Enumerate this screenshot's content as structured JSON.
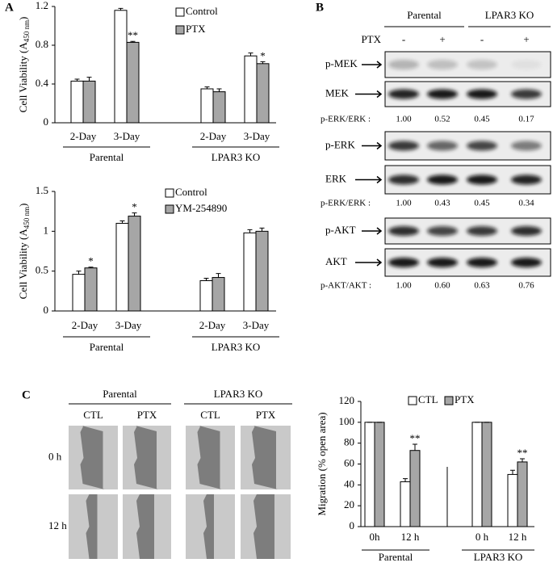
{
  "panel_labels": [
    "A",
    "B",
    "C"
  ],
  "chart_data": [
    {
      "type": "bar",
      "y_label": {
        "text": "Cell Viability (A",
        "sub": "450 nm",
        "end": ")"
      },
      "categories": [
        "2-Day",
        "3-Day",
        "2-Day",
        "3-Day"
      ],
      "groups": [
        "Parental",
        "LPAR3 KO"
      ],
      "series": [
        {
          "name": "Control",
          "color": "#ffffff",
          "values": [
            0.43,
            1.16,
            0.35,
            0.69
          ],
          "errors": [
            0.02,
            0.02,
            0.02,
            0.03
          ],
          "significance": [
            null,
            null,
            null,
            null
          ]
        },
        {
          "name": "PTX",
          "color": "#a6a6a6",
          "values": [
            0.43,
            0.83,
            0.32,
            0.61
          ],
          "errors": [
            0.04,
            0.01,
            0.03,
            0.02
          ],
          "significance": [
            null,
            "**",
            null,
            "*"
          ]
        }
      ],
      "ylim": [
        0,
        1.2
      ],
      "yticks": [
        0,
        0.4,
        0.8,
        1.2
      ]
    },
    {
      "type": "bar",
      "y_label": {
        "text": "Cell Viability (A",
        "sub": "450 nm",
        "end": ")"
      },
      "categories": [
        "2-Day",
        "3-Day",
        "2-Day",
        "3-Day"
      ],
      "groups": [
        "Parental",
        "LPAR3 KO"
      ],
      "series": [
        {
          "name": "Control",
          "color": "#ffffff",
          "values": [
            0.46,
            1.1,
            0.38,
            0.98
          ],
          "errors": [
            0.04,
            0.03,
            0.03,
            0.04
          ],
          "significance": [
            null,
            null,
            null,
            null
          ]
        },
        {
          "name": "YM-254890",
          "color": "#a6a6a6",
          "values": [
            0.54,
            1.19,
            0.42,
            1.0
          ],
          "errors": [
            0.01,
            0.04,
            0.05,
            0.04
          ],
          "significance": [
            "*",
            "*",
            null,
            null
          ]
        }
      ],
      "ylim": [
        0,
        1.5
      ],
      "yticks": [
        0,
        0.5,
        1,
        1.5
      ]
    },
    {
      "type": "bar",
      "y_label": {
        "text": "Migration (% open area)"
      },
      "categories": [
        "0h",
        "12 h",
        "0 h",
        "12 h"
      ],
      "groups": [
        "Parental",
        "LPAR3 KO"
      ],
      "series": [
        {
          "name": "CTL",
          "color": "#ffffff",
          "values": [
            100,
            43,
            100,
            50
          ],
          "errors": [
            0,
            3,
            0,
            4
          ],
          "significance": [
            null,
            null,
            null,
            null
          ]
        },
        {
          "name": "PTX",
          "color": "#a6a6a6",
          "values": [
            100,
            73,
            100,
            62
          ],
          "errors": [
            0,
            6,
            0,
            3
          ],
          "significance": [
            null,
            "**",
            null,
            "**"
          ]
        }
      ],
      "ylim": [
        0,
        120
      ],
      "yticks": [
        0,
        20,
        40,
        60,
        80,
        100,
        120
      ]
    }
  ],
  "blot": {
    "groups": [
      "Parental",
      "LPAR3 KO"
    ],
    "treatment": "PTX",
    "lanes": [
      "-",
      "+",
      "-",
      "+"
    ],
    "sets": [
      {
        "bands": [
          "p-MEK",
          "MEK"
        ],
        "ratio_label": "p-ERK/ERK :",
        "ratios": [
          "1.00",
          "0.52",
          "0.45",
          "0.17"
        ]
      },
      {
        "bands": [
          "p-ERK",
          "ERK"
        ],
        "ratio_label": "p-ERK/ERK :",
        "ratios": [
          "1.00",
          "0.43",
          "0.45",
          "0.34"
        ]
      },
      {
        "bands": [
          "p-AKT",
          "AKT"
        ],
        "ratio_label": "p-AKT/AKT :",
        "ratios": [
          "1.00",
          "0.60",
          "0.63",
          "0.76"
        ]
      }
    ]
  },
  "wound": {
    "groups": [
      "Parental",
      "LPAR3 KO"
    ],
    "columns": [
      "CTL",
      "PTX",
      "CTL",
      "PTX"
    ],
    "rows": [
      "0 h",
      "12 h"
    ]
  }
}
